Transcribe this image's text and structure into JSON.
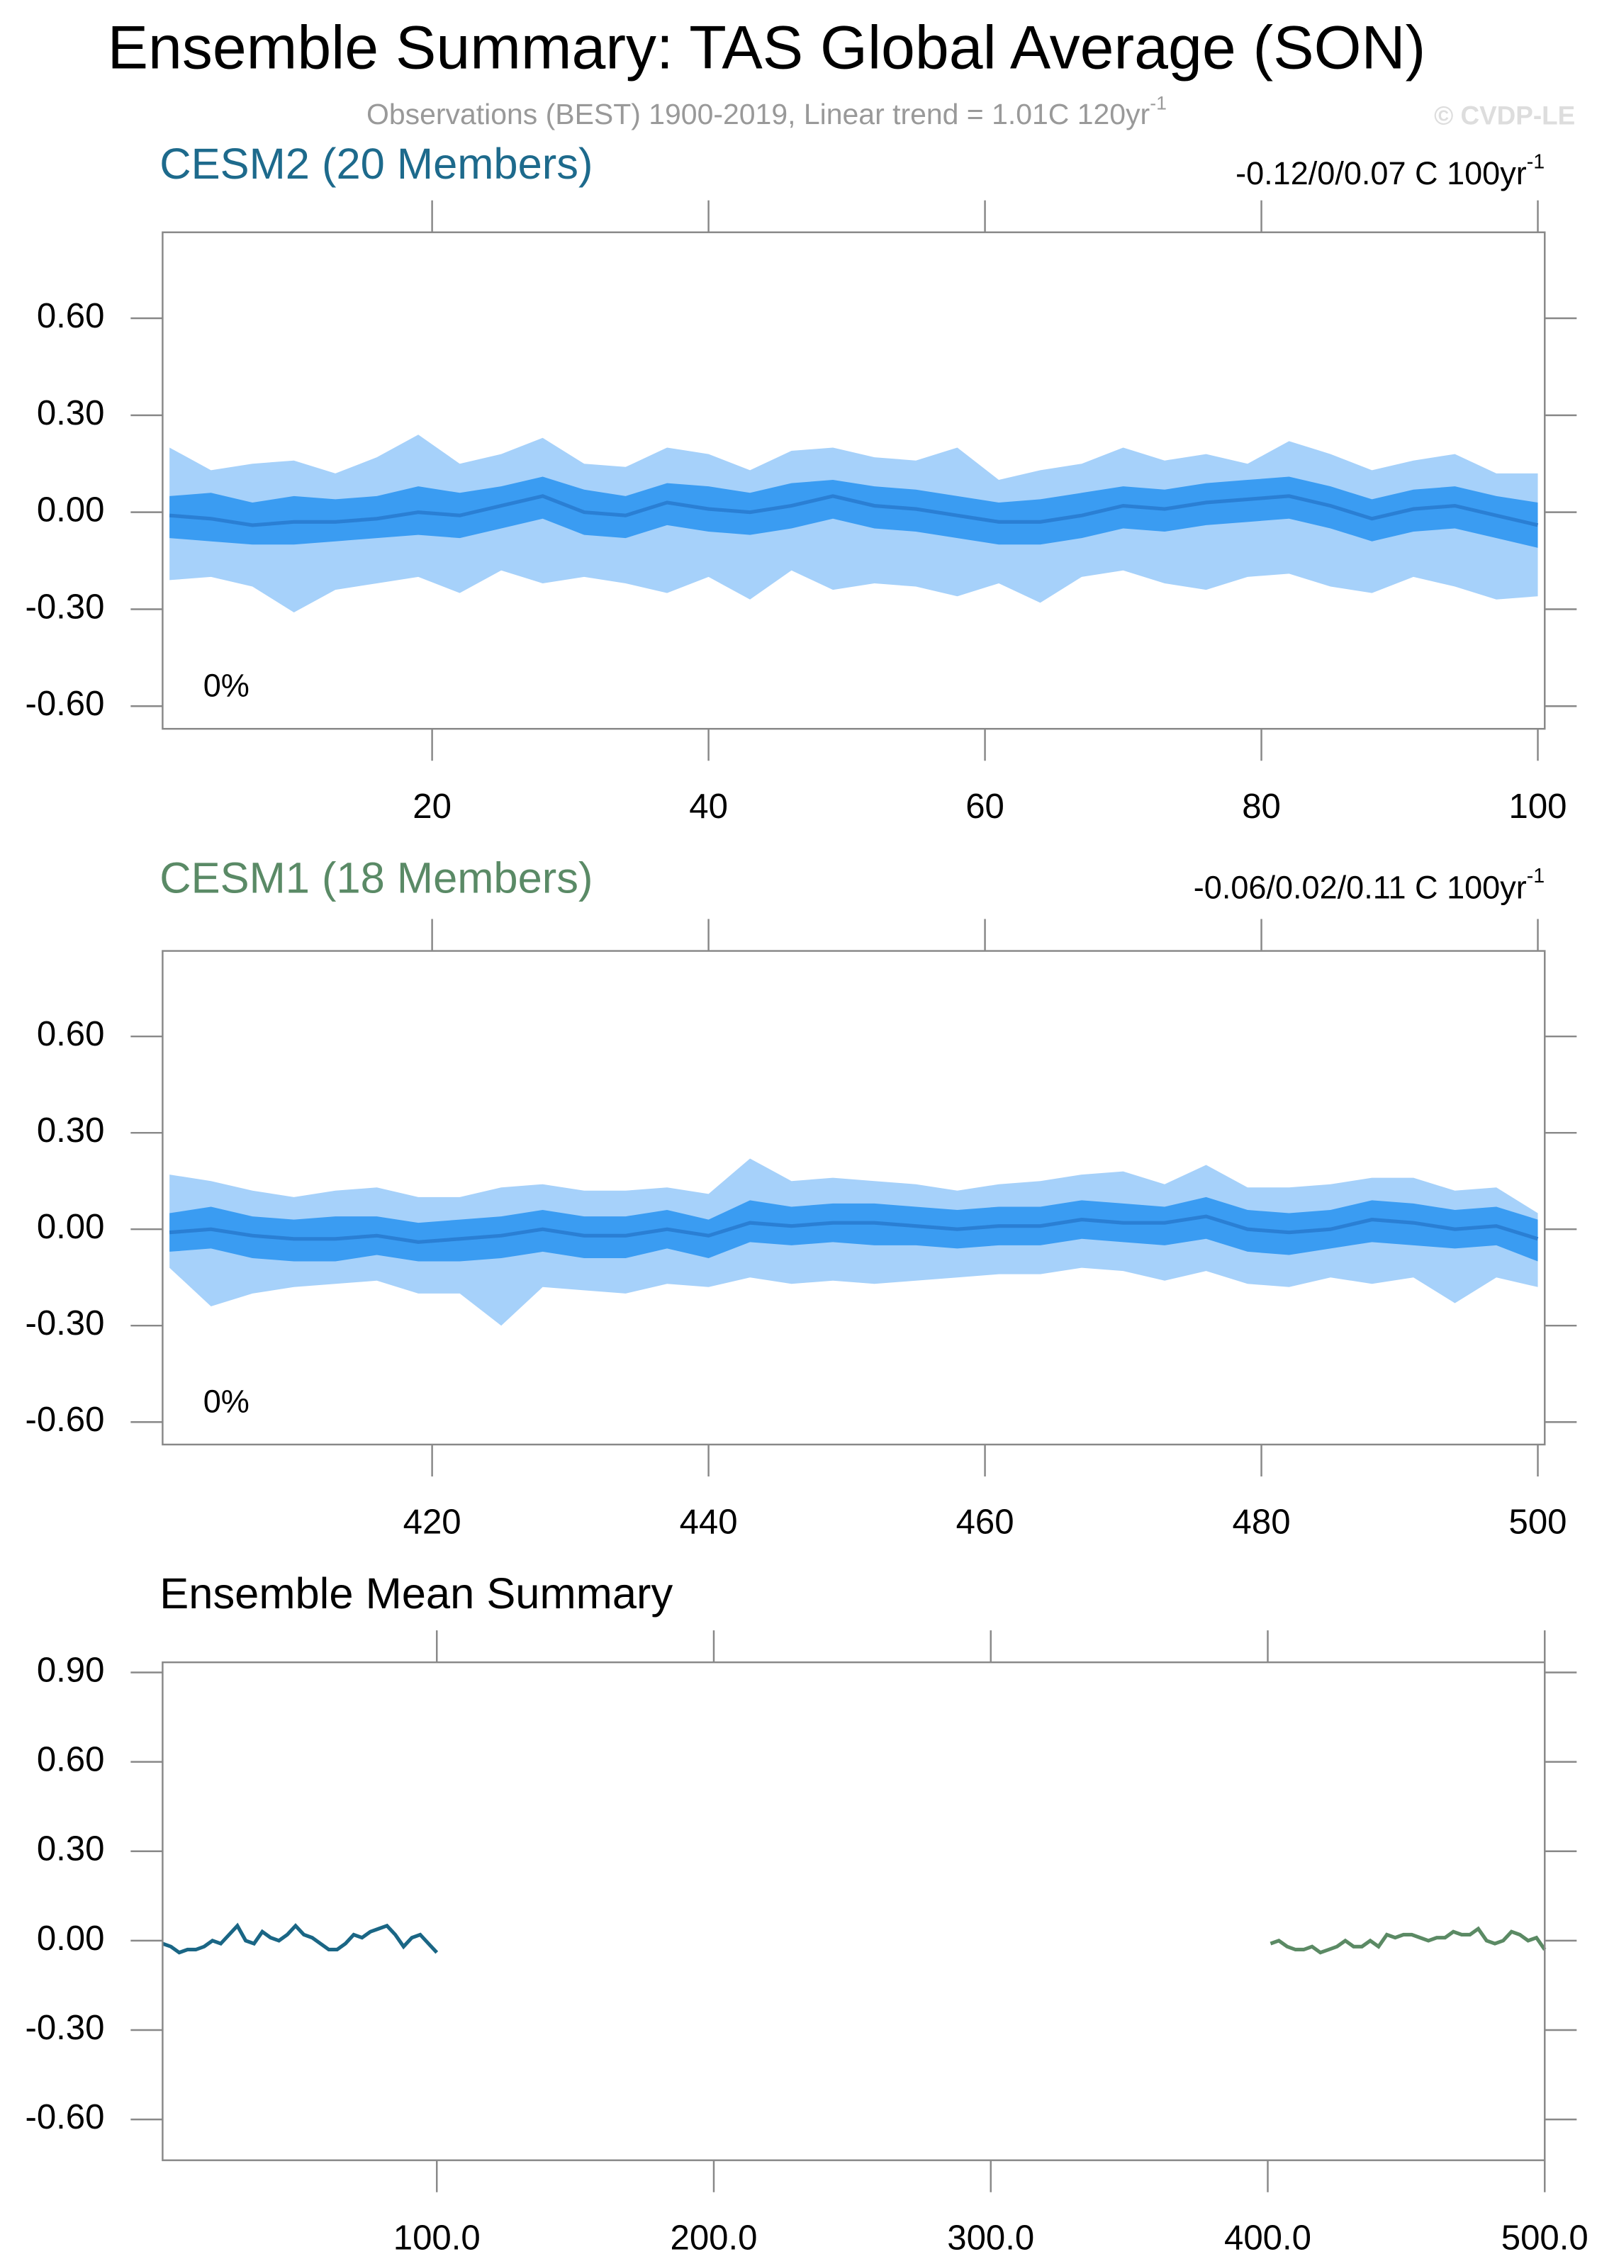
{
  "title": "Ensemble Summary: TAS Global Average (SON)",
  "subtitle": "Observations (BEST) 1900-2019, Linear trend = 1.01C 120yr",
  "subtitle_sup": "-1",
  "watermark": "© CVDP-LE",
  "chart_data": [
    {
      "type": "band",
      "title": "CESM2 (20 Members)",
      "title_color": "#1d6a8c",
      "trend": "-0.12/0/0.07 C 100yr",
      "trend_sup": "-1",
      "annotation": "0%",
      "x": [
        1,
        4,
        7,
        10,
        13,
        16,
        19,
        22,
        25,
        28,
        31,
        34,
        37,
        40,
        43,
        46,
        49,
        52,
        55,
        58,
        61,
        64,
        67,
        70,
        73,
        76,
        79,
        82,
        85,
        88,
        91,
        94,
        97,
        100
      ],
      "bands": [
        {
          "color": "#a6d1fa",
          "lower": [
            -0.21,
            -0.2,
            -0.23,
            -0.31,
            -0.24,
            -0.22,
            -0.2,
            -0.25,
            -0.18,
            -0.22,
            -0.2,
            -0.22,
            -0.25,
            -0.2,
            -0.27,
            -0.18,
            -0.24,
            -0.22,
            -0.23,
            -0.26,
            -0.22,
            -0.28,
            -0.2,
            -0.18,
            -0.22,
            -0.24,
            -0.2,
            -0.19,
            -0.23,
            -0.25,
            -0.2,
            -0.23,
            -0.27,
            -0.26
          ],
          "upper": [
            0.2,
            0.13,
            0.15,
            0.16,
            0.12,
            0.17,
            0.24,
            0.15,
            0.18,
            0.23,
            0.15,
            0.14,
            0.2,
            0.18,
            0.13,
            0.19,
            0.2,
            0.17,
            0.16,
            0.2,
            0.1,
            0.13,
            0.15,
            0.2,
            0.16,
            0.18,
            0.15,
            0.22,
            0.18,
            0.13,
            0.16,
            0.18,
            0.12,
            0.12
          ]
        },
        {
          "color": "#3a9cf2",
          "lower": [
            -0.08,
            -0.09,
            -0.1,
            -0.1,
            -0.09,
            -0.08,
            -0.07,
            -0.08,
            -0.05,
            -0.02,
            -0.07,
            -0.08,
            -0.04,
            -0.06,
            -0.07,
            -0.05,
            -0.02,
            -0.05,
            -0.06,
            -0.08,
            -0.1,
            -0.1,
            -0.08,
            -0.05,
            -0.06,
            -0.04,
            -0.03,
            -0.02,
            -0.05,
            -0.09,
            -0.06,
            -0.05,
            -0.08,
            -0.11
          ],
          "upper": [
            0.05,
            0.06,
            0.03,
            0.05,
            0.04,
            0.05,
            0.08,
            0.06,
            0.08,
            0.11,
            0.07,
            0.05,
            0.09,
            0.08,
            0.06,
            0.09,
            0.1,
            0.08,
            0.07,
            0.05,
            0.03,
            0.04,
            0.06,
            0.08,
            0.07,
            0.09,
            0.1,
            0.11,
            0.08,
            0.04,
            0.07,
            0.08,
            0.05,
            0.03
          ]
        }
      ],
      "line": {
        "color": "#2a7fd4",
        "values": [
          -0.01,
          -0.02,
          -0.04,
          -0.03,
          -0.03,
          -0.02,
          0.0,
          -0.01,
          0.02,
          0.05,
          0.0,
          -0.01,
          0.03,
          0.01,
          0.0,
          0.02,
          0.05,
          0.02,
          0.01,
          -0.01,
          -0.03,
          -0.03,
          -0.01,
          0.02,
          0.01,
          0.03,
          0.04,
          0.05,
          0.02,
          -0.02,
          0.01,
          0.02,
          -0.01,
          -0.04
        ]
      },
      "xlim": [
        0.5,
        100.5
      ],
      "ylim": [
        -0.67,
        0.866
      ],
      "xticks": [
        20,
        40,
        60,
        80,
        100
      ],
      "yticks": [
        {
          "value": -0.6,
          "label": "-0.60"
        },
        {
          "value": -0.3,
          "label": "-0.30"
        },
        {
          "value": 0,
          "label": "0.00"
        },
        {
          "value": 0.3,
          "label": "0.30"
        },
        {
          "value": 0.6,
          "label": "0.60"
        }
      ]
    },
    {
      "type": "band",
      "title": "CESM1 (18 Members)",
      "title_color": "#5a8a66",
      "trend": "-0.06/0.02/0.11 C 100yr",
      "trend_sup": "-1",
      "annotation": "0%",
      "x": [
        401,
        404,
        407,
        410,
        413,
        416,
        419,
        422,
        425,
        428,
        431,
        434,
        437,
        440,
        443,
        446,
        449,
        452,
        455,
        458,
        461,
        464,
        467,
        470,
        473,
        476,
        479,
        482,
        485,
        488,
        491,
        494,
        497,
        500
      ],
      "bands": [
        {
          "color": "#a6d1fa",
          "lower": [
            -0.12,
            -0.24,
            -0.2,
            -0.18,
            -0.17,
            -0.16,
            -0.2,
            -0.2,
            -0.3,
            -0.18,
            -0.19,
            -0.2,
            -0.17,
            -0.18,
            -0.15,
            -0.17,
            -0.16,
            -0.17,
            -0.16,
            -0.15,
            -0.14,
            -0.14,
            -0.12,
            -0.13,
            -0.16,
            -0.13,
            -0.17,
            -0.18,
            -0.15,
            -0.17,
            -0.15,
            -0.23,
            -0.15,
            -0.18
          ],
          "upper": [
            0.17,
            0.15,
            0.12,
            0.1,
            0.12,
            0.13,
            0.1,
            0.1,
            0.13,
            0.14,
            0.12,
            0.12,
            0.13,
            0.11,
            0.22,
            0.15,
            0.16,
            0.15,
            0.14,
            0.12,
            0.14,
            0.15,
            0.17,
            0.18,
            0.14,
            0.2,
            0.13,
            0.13,
            0.14,
            0.16,
            0.16,
            0.12,
            0.13,
            0.05
          ]
        },
        {
          "color": "#3a9cf2",
          "lower": [
            -0.07,
            -0.06,
            -0.09,
            -0.1,
            -0.1,
            -0.08,
            -0.1,
            -0.1,
            -0.09,
            -0.07,
            -0.09,
            -0.09,
            -0.06,
            -0.09,
            -0.04,
            -0.05,
            -0.04,
            -0.05,
            -0.05,
            -0.06,
            -0.05,
            -0.05,
            -0.03,
            -0.04,
            -0.05,
            -0.03,
            -0.07,
            -0.08,
            -0.06,
            -0.04,
            -0.05,
            -0.06,
            -0.05,
            -0.1
          ],
          "upper": [
            0.05,
            0.07,
            0.04,
            0.03,
            0.04,
            0.04,
            0.02,
            0.03,
            0.04,
            0.06,
            0.04,
            0.04,
            0.06,
            0.03,
            0.09,
            0.07,
            0.08,
            0.08,
            0.07,
            0.06,
            0.07,
            0.07,
            0.09,
            0.08,
            0.07,
            0.1,
            0.06,
            0.05,
            0.06,
            0.09,
            0.08,
            0.06,
            0.07,
            0.03
          ]
        }
      ],
      "line": {
        "color": "#2a7fd4",
        "values": [
          -0.01,
          0.0,
          -0.02,
          -0.03,
          -0.03,
          -0.02,
          -0.04,
          -0.03,
          -0.02,
          0.0,
          -0.02,
          -0.02,
          0.0,
          -0.02,
          0.02,
          0.01,
          0.02,
          0.02,
          0.01,
          0.0,
          0.01,
          0.01,
          0.03,
          0.02,
          0.02,
          0.04,
          0.0,
          -0.01,
          0.0,
          0.03,
          0.02,
          0.0,
          0.01,
          -0.03
        ]
      },
      "xlim": [
        400.5,
        500.5
      ],
      "ylim": [
        -0.67,
        0.866
      ],
      "xticks": [
        420,
        440,
        460,
        480,
        500
      ],
      "yticks": [
        {
          "value": -0.6,
          "label": "-0.60"
        },
        {
          "value": -0.3,
          "label": "-0.30"
        },
        {
          "value": 0,
          "label": "0.00"
        },
        {
          "value": 0.3,
          "label": "0.30"
        },
        {
          "value": 0.6,
          "label": "0.60"
        }
      ]
    },
    {
      "type": "line",
      "title": "Ensemble Mean Summary",
      "title_color": "#000000",
      "series": [
        {
          "color": "#1a6685",
          "x": [
            1,
            4,
            7,
            10,
            13,
            16,
            19,
            22,
            25,
            28,
            31,
            34,
            37,
            40,
            43,
            46,
            49,
            52,
            55,
            58,
            61,
            64,
            67,
            70,
            73,
            76,
            79,
            82,
            85,
            88,
            91,
            94,
            97,
            100
          ],
          "values": [
            -0.01,
            -0.02,
            -0.04,
            -0.03,
            -0.03,
            -0.02,
            0.0,
            -0.01,
            0.02,
            0.05,
            0.0,
            -0.01,
            0.03,
            0.01,
            0.0,
            0.02,
            0.05,
            0.02,
            0.01,
            -0.01,
            -0.03,
            -0.03,
            -0.01,
            0.02,
            0.01,
            0.03,
            0.04,
            0.05,
            0.02,
            -0.02,
            0.01,
            0.02,
            -0.01,
            -0.04
          ]
        },
        {
          "color": "#5b8a64",
          "x": [
            401,
            404,
            407,
            410,
            413,
            416,
            419,
            422,
            425,
            428,
            431,
            434,
            437,
            440,
            443,
            446,
            449,
            452,
            455,
            458,
            461,
            464,
            467,
            470,
            473,
            476,
            479,
            482,
            485,
            488,
            491,
            494,
            497,
            500
          ],
          "values": [
            -0.01,
            0.0,
            -0.02,
            -0.03,
            -0.03,
            -0.02,
            -0.04,
            -0.03,
            -0.02,
            0.0,
            -0.02,
            -0.02,
            0.0,
            -0.02,
            0.02,
            0.01,
            0.02,
            0.02,
            0.01,
            0.0,
            0.01,
            0.01,
            0.03,
            0.02,
            0.02,
            0.04,
            0.0,
            -0.01,
            0.0,
            0.03,
            0.02,
            0.0,
            0.01,
            -0.03
          ]
        }
      ],
      "xlim": [
        1,
        500
      ],
      "ylim": [
        -0.737,
        0.934
      ],
      "xticks": [
        {
          "value": 100,
          "label": "100.0"
        },
        {
          "value": 200,
          "label": "200.0"
        },
        {
          "value": 300,
          "label": "300.0"
        },
        {
          "value": 400,
          "label": "400.0"
        },
        {
          "value": 500,
          "label": "500.0"
        }
      ],
      "yticks": [
        {
          "value": -0.6,
          "label": "-0.60"
        },
        {
          "value": -0.3,
          "label": "-0.30"
        },
        {
          "value": 0,
          "label": "0.00"
        },
        {
          "value": 0.3,
          "label": "0.30"
        },
        {
          "value": 0.6,
          "label": "0.60"
        },
        {
          "value": 0.9,
          "label": "0.90"
        }
      ]
    }
  ]
}
